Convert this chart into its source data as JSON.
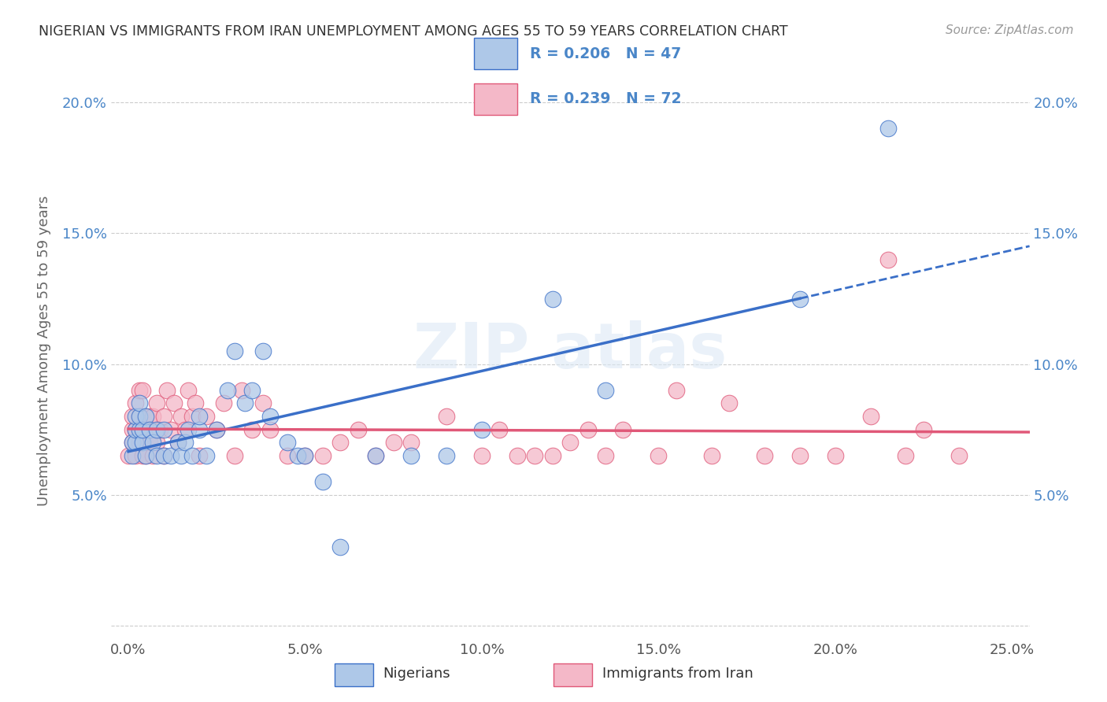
{
  "title": "NIGERIAN VS IMMIGRANTS FROM IRAN UNEMPLOYMENT AMONG AGES 55 TO 59 YEARS CORRELATION CHART",
  "source": "Source: ZipAtlas.com",
  "ylabel": "Unemployment Among Ages 55 to 59 years",
  "xlim": [
    -0.005,
    0.255
  ],
  "ylim": [
    -0.005,
    0.215
  ],
  "xticks": [
    0.0,
    0.05,
    0.1,
    0.15,
    0.2,
    0.25
  ],
  "xticklabels": [
    "0.0%",
    "5.0%",
    "10.0%",
    "15.0%",
    "20.0%",
    "25.0%"
  ],
  "yticks": [
    0.0,
    0.05,
    0.1,
    0.15,
    0.2
  ],
  "yticklabels": [
    "",
    "5.0%",
    "10.0%",
    "15.0%",
    "20.0%"
  ],
  "blue_color": "#aec8e8",
  "pink_color": "#f4b8c8",
  "blue_line_color": "#3a6fc8",
  "pink_line_color": "#e05878",
  "blue_r": 0.206,
  "blue_n": 47,
  "pink_r": 0.239,
  "pink_n": 72,
  "legend_label_blue": "Nigerians",
  "legend_label_pink": "Immigrants from Iran",
  "r_n_color": "#4a86c8",
  "watermark_text": "ZIPatlas",
  "blue_x": [
    0.001,
    0.001,
    0.002,
    0.002,
    0.002,
    0.003,
    0.003,
    0.003,
    0.004,
    0.004,
    0.005,
    0.005,
    0.006,
    0.007,
    0.008,
    0.008,
    0.01,
    0.01,
    0.012,
    0.014,
    0.015,
    0.016,
    0.017,
    0.018,
    0.02,
    0.02,
    0.022,
    0.025,
    0.028,
    0.03,
    0.033,
    0.035,
    0.038,
    0.04,
    0.045,
    0.048,
    0.05,
    0.055,
    0.06,
    0.07,
    0.08,
    0.09,
    0.1,
    0.12,
    0.135,
    0.19,
    0.215
  ],
  "blue_y": [
    0.065,
    0.07,
    0.07,
    0.075,
    0.08,
    0.075,
    0.08,
    0.085,
    0.07,
    0.075,
    0.065,
    0.08,
    0.075,
    0.07,
    0.065,
    0.075,
    0.065,
    0.075,
    0.065,
    0.07,
    0.065,
    0.07,
    0.075,
    0.065,
    0.075,
    0.08,
    0.065,
    0.075,
    0.09,
    0.105,
    0.085,
    0.09,
    0.105,
    0.08,
    0.07,
    0.065,
    0.065,
    0.055,
    0.03,
    0.065,
    0.065,
    0.065,
    0.075,
    0.125,
    0.09,
    0.125,
    0.19
  ],
  "pink_x": [
    0.0,
    0.001,
    0.001,
    0.001,
    0.002,
    0.002,
    0.002,
    0.003,
    0.003,
    0.003,
    0.004,
    0.004,
    0.004,
    0.005,
    0.005,
    0.006,
    0.006,
    0.007,
    0.007,
    0.008,
    0.008,
    0.009,
    0.01,
    0.01,
    0.011,
    0.012,
    0.013,
    0.014,
    0.015,
    0.016,
    0.017,
    0.018,
    0.019,
    0.02,
    0.022,
    0.025,
    0.027,
    0.03,
    0.032,
    0.035,
    0.038,
    0.04,
    0.045,
    0.05,
    0.055,
    0.06,
    0.065,
    0.07,
    0.075,
    0.08,
    0.09,
    0.1,
    0.105,
    0.11,
    0.115,
    0.12,
    0.125,
    0.13,
    0.135,
    0.14,
    0.15,
    0.155,
    0.165,
    0.17,
    0.18,
    0.19,
    0.2,
    0.21,
    0.215,
    0.22,
    0.225,
    0.235
  ],
  "pink_y": [
    0.065,
    0.07,
    0.075,
    0.08,
    0.065,
    0.075,
    0.085,
    0.07,
    0.08,
    0.09,
    0.065,
    0.075,
    0.09,
    0.065,
    0.08,
    0.07,
    0.08,
    0.065,
    0.08,
    0.07,
    0.085,
    0.075,
    0.065,
    0.08,
    0.09,
    0.075,
    0.085,
    0.07,
    0.08,
    0.075,
    0.09,
    0.08,
    0.085,
    0.065,
    0.08,
    0.075,
    0.085,
    0.065,
    0.09,
    0.075,
    0.085,
    0.075,
    0.065,
    0.065,
    0.065,
    0.07,
    0.075,
    0.065,
    0.07,
    0.07,
    0.08,
    0.065,
    0.075,
    0.065,
    0.065,
    0.065,
    0.07,
    0.075,
    0.065,
    0.075,
    0.065,
    0.09,
    0.065,
    0.085,
    0.065,
    0.065,
    0.065,
    0.08,
    0.14,
    0.065,
    0.075,
    0.065
  ]
}
